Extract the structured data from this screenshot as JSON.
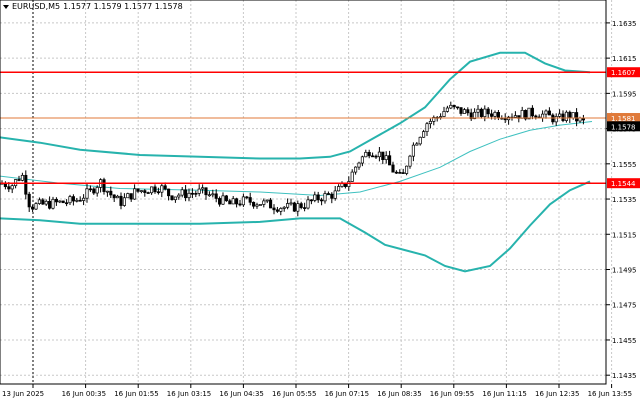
{
  "header": {
    "symbol": "EURUSD,M5",
    "ohlc": "1.1577 1.1579 1.1577 1.1578"
  },
  "colors": {
    "background": "#ffffff",
    "grid": "#c8c8c8",
    "candle": "#000000",
    "band": "#27b3ad",
    "ma": "#3fc1c0",
    "level_line": "#ff0000",
    "price_line": "#e07a3a",
    "badge_bg": "#ff0000",
    "badge_text": "#ffffff"
  },
  "chart_data": {
    "type": "candlestick",
    "symbol": "EURUSD,M5",
    "y_ticks": [
      "1.1635",
      "1.1615",
      "1.1595",
      "1.1575",
      "1.1555",
      "1.1535",
      "1.1515",
      "1.1495",
      "1.1475",
      "1.1455",
      "1.1435"
    ],
    "ylim": [
      1.143,
      1.1648
    ],
    "x_ticks": [
      "13 Jun 2025",
      "16 Jun 00:35",
      "16 Jun 01:55",
      "16 Jun 03:15",
      "16 Jun 04:35",
      "16 Jun 05:55",
      "16 Jun 07:15",
      "16 Jun 08:35",
      "16 Jun 09:55",
      "16 Jun 11:15",
      "16 Jun 12:35",
      "16 Jun 13:55"
    ],
    "levels": [
      {
        "label": "1.1607",
        "value": 1.1607
      },
      {
        "label": "1.1544",
        "value": 1.1544
      }
    ],
    "price_badges": [
      {
        "label": "1.1581",
        "value": 1.1581
      },
      {
        "label": "1.1578",
        "value": 1.1578
      }
    ],
    "current_price": 1.1578,
    "close_path": [
      [
        0,
        1.1544
      ],
      [
        12,
        1.1543
      ],
      [
        22,
        1.1549
      ],
      [
        30,
        1.1531
      ],
      [
        45,
        1.1532
      ],
      [
        60,
        1.1533
      ],
      [
        75,
        1.1534
      ],
      [
        90,
        1.1539
      ],
      [
        100,
        1.1545
      ],
      [
        110,
        1.1538
      ],
      [
        120,
        1.1533
      ],
      [
        135,
        1.1539
      ],
      [
        150,
        1.1541
      ],
      [
        160,
        1.1542
      ],
      [
        170,
        1.1537
      ],
      [
        185,
        1.1538
      ],
      [
        200,
        1.1539
      ],
      [
        215,
        1.1536
      ],
      [
        230,
        1.1532
      ],
      [
        245,
        1.1534
      ],
      [
        260,
        1.1533
      ],
      [
        275,
        1.1531
      ],
      [
        290,
        1.153
      ],
      [
        305,
        1.1532
      ],
      [
        320,
        1.1536
      ],
      [
        335,
        1.1538
      ],
      [
        348,
        1.1545
      ],
      [
        358,
        1.1556
      ],
      [
        370,
        1.1563
      ],
      [
        382,
        1.156
      ],
      [
        392,
        1.1552
      ],
      [
        402,
        1.1546
      ],
      [
        410,
        1.1562
      ],
      [
        418,
        1.157
      ],
      [
        426,
        1.1578
      ],
      [
        436,
        1.1581
      ],
      [
        448,
        1.1587
      ],
      [
        460,
        1.1585
      ],
      [
        475,
        1.1583
      ],
      [
        490,
        1.1584
      ],
      [
        505,
        1.1583
      ],
      [
        520,
        1.1583
      ],
      [
        535,
        1.1584
      ],
      [
        548,
        1.1582
      ],
      [
        558,
        1.158
      ],
      [
        568,
        1.1583
      ],
      [
        578,
        1.158
      ],
      [
        586,
        1.1578
      ]
    ],
    "upper_band": [
      [
        0,
        1.157
      ],
      [
        40,
        1.1567
      ],
      [
        80,
        1.1563
      ],
      [
        140,
        1.156
      ],
      [
        200,
        1.1559
      ],
      [
        260,
        1.1558
      ],
      [
        300,
        1.1558
      ],
      [
        330,
        1.1559
      ],
      [
        350,
        1.1562
      ],
      [
        375,
        1.157
      ],
      [
        400,
        1.1578
      ],
      [
        425,
        1.1587
      ],
      [
        450,
        1.1603
      ],
      [
        470,
        1.1613
      ],
      [
        500,
        1.1618
      ],
      [
        525,
        1.1618
      ],
      [
        545,
        1.1612
      ],
      [
        565,
        1.1608
      ],
      [
        590,
        1.1607
      ]
    ],
    "lower_band": [
      [
        0,
        1.1524
      ],
      [
        40,
        1.1523
      ],
      [
        80,
        1.1521
      ],
      [
        140,
        1.1521
      ],
      [
        200,
        1.1521
      ],
      [
        260,
        1.1522
      ],
      [
        300,
        1.1524
      ],
      [
        340,
        1.1524
      ],
      [
        365,
        1.1516
      ],
      [
        385,
        1.1509
      ],
      [
        405,
        1.1506
      ],
      [
        425,
        1.1503
      ],
      [
        445,
        1.1497
      ],
      [
        465,
        1.1494
      ],
      [
        490,
        1.1497
      ],
      [
        510,
        1.1507
      ],
      [
        530,
        1.152
      ],
      [
        550,
        1.1532
      ],
      [
        570,
        1.154
      ],
      [
        590,
        1.1545
      ]
    ],
    "moving_average": [
      [
        0,
        1.1548
      ],
      [
        60,
        1.1544
      ],
      [
        120,
        1.1541
      ],
      [
        200,
        1.154
      ],
      [
        260,
        1.1539
      ],
      [
        320,
        1.1537
      ],
      [
        360,
        1.1539
      ],
      [
        400,
        1.1545
      ],
      [
        440,
        1.1553
      ],
      [
        470,
        1.1562
      ],
      [
        500,
        1.1569
      ],
      [
        530,
        1.1574
      ],
      [
        560,
        1.1577
      ],
      [
        592,
        1.1579
      ]
    ],
    "session_separator_x": 33
  }
}
